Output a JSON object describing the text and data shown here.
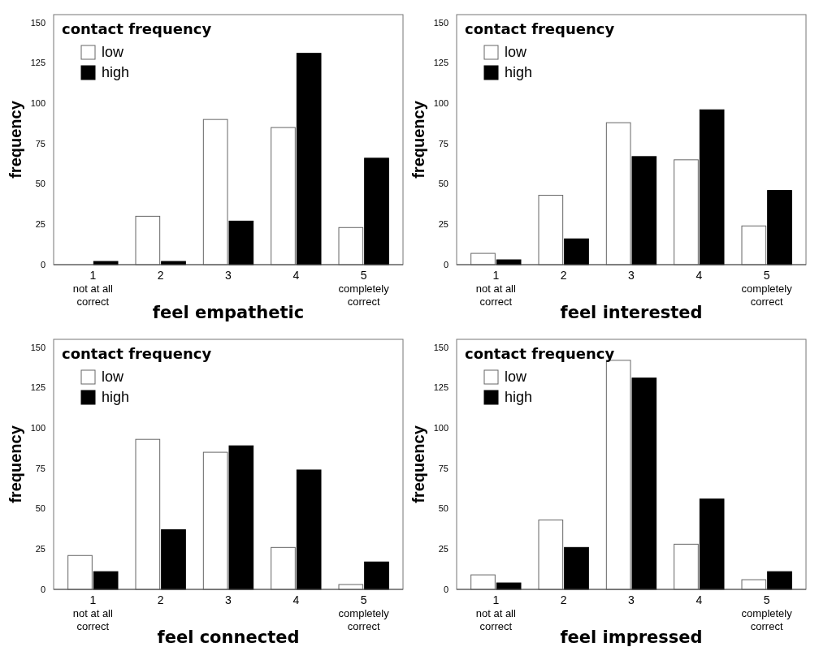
{
  "chart_data": [
    {
      "type": "bar",
      "xlabel": "feel empathetic",
      "ylabel": "frequency",
      "legend_title": "contact frequency",
      "legend": "top left",
      "grid": false,
      "categories": [
        "1\nnot at all\ncorrect",
        "2",
        "3",
        "4",
        "5\ncompletely\ncorrect"
      ],
      "ylim": [
        0,
        155
      ],
      "yticks": [
        0,
        25,
        50,
        75,
        100,
        125,
        150
      ],
      "series": [
        {
          "name": "low",
          "color": "#ffffff",
          "values": [
            0,
            30,
            90,
            85,
            23
          ]
        },
        {
          "name": "high",
          "color": "#000000",
          "values": [
            2,
            2,
            27,
            131,
            66
          ]
        }
      ]
    },
    {
      "type": "bar",
      "xlabel": "feel interested",
      "ylabel": "frequency",
      "legend_title": "contact frequency",
      "legend": "top left",
      "grid": false,
      "categories": [
        "1\nnot at all\ncorrect",
        "2",
        "3",
        "4",
        "5\ncompletely\ncorrect"
      ],
      "ylim": [
        0,
        155
      ],
      "yticks": [
        0,
        25,
        50,
        75,
        100,
        125,
        150
      ],
      "series": [
        {
          "name": "low",
          "color": "#ffffff",
          "values": [
            7,
            43,
            88,
            65,
            24
          ]
        },
        {
          "name": "high",
          "color": "#000000",
          "values": [
            3,
            16,
            67,
            96,
            46
          ]
        }
      ]
    },
    {
      "type": "bar",
      "xlabel": "feel connected",
      "ylabel": "frequency",
      "legend_title": "contact frequency",
      "legend": "top left",
      "grid": false,
      "categories": [
        "1\nnot at all\ncorrect",
        "2",
        "3",
        "4",
        "5\ncompletely\ncorrect"
      ],
      "ylim": [
        0,
        155
      ],
      "yticks": [
        0,
        25,
        50,
        75,
        100,
        125,
        150
      ],
      "series": [
        {
          "name": "low",
          "color": "#ffffff",
          "values": [
            21,
            93,
            85,
            26,
            3
          ]
        },
        {
          "name": "high",
          "color": "#000000",
          "values": [
            11,
            37,
            89,
            74,
            17
          ]
        }
      ]
    },
    {
      "type": "bar",
      "xlabel": "feel impressed",
      "ylabel": "frequency",
      "legend_title": "contact frequency",
      "legend": "top left",
      "grid": false,
      "categories": [
        "1\nnot at all\ncorrect",
        "2",
        "3",
        "4",
        "5\ncompletely\ncorrect"
      ],
      "ylim": [
        0,
        155
      ],
      "yticks": [
        0,
        25,
        50,
        75,
        100,
        125,
        150
      ],
      "series": [
        {
          "name": "low",
          "color": "#ffffff",
          "values": [
            9,
            43,
            142,
            28,
            6
          ]
        },
        {
          "name": "high",
          "color": "#000000",
          "values": [
            4,
            26,
            131,
            56,
            11
          ]
        }
      ]
    }
  ]
}
